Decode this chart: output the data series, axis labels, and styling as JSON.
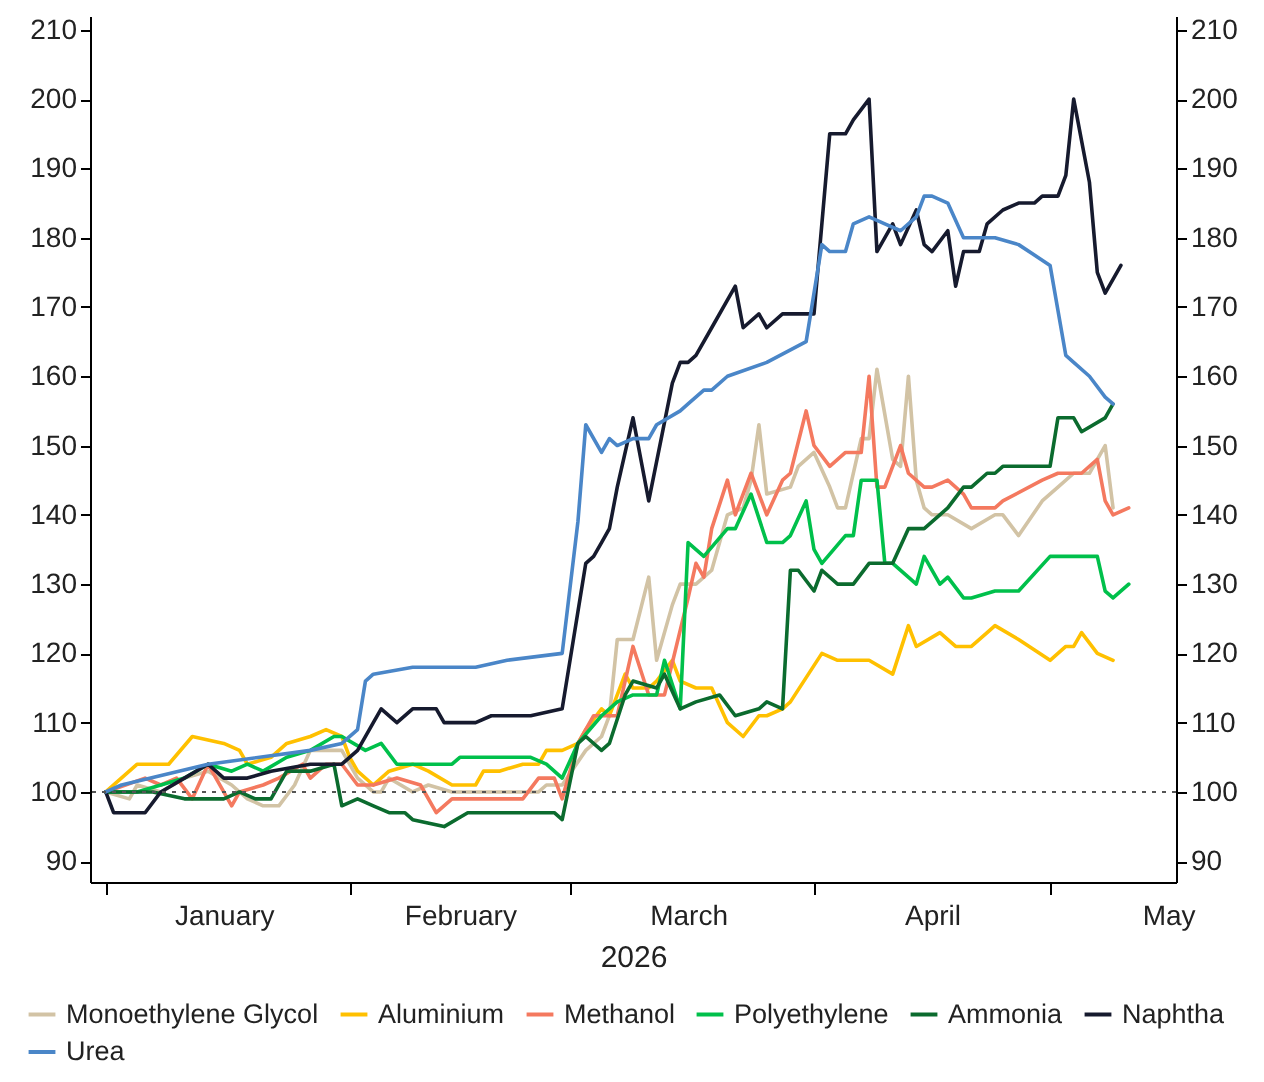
{
  "chart_data": {
    "type": "line",
    "xlabel": "2026",
    "legend": "bottom",
    "xlim": [
      "2025-12-30",
      "2026-05-17"
    ],
    "xticks": [
      {
        "value": "2026-01-01",
        "label": null
      },
      {
        "value": "2026-01-16",
        "label": "January"
      },
      {
        "value": "2026-02-01",
        "label": null
      },
      {
        "value": "2026-02-15",
        "label": "February"
      },
      {
        "value": "2026-03-01",
        "label": null
      },
      {
        "value": "2026-03-16",
        "label": "March"
      },
      {
        "value": "2026-04-01",
        "label": null
      },
      {
        "value": "2026-04-16",
        "label": "April"
      },
      {
        "value": "2026-05-01",
        "label": null
      },
      {
        "value": "2026-05-16",
        "label": "May"
      }
    ],
    "ylim": [
      87,
      212
    ],
    "yticks": [
      90,
      100,
      110,
      120,
      130,
      140,
      150,
      160,
      170,
      180,
      190,
      200,
      210
    ],
    "y2lim": [
      87,
      212
    ],
    "y2ticks": [
      90,
      100,
      110,
      120,
      130,
      140,
      150,
      160,
      170,
      180,
      190,
      200,
      210
    ],
    "ref_lines": [
      {
        "axis": "y",
        "value": 100,
        "color": "#555555",
        "line_style": "dotted"
      }
    ],
    "series": [
      {
        "name": "Monoethylene Glycol",
        "color": "#d2c3a5",
        "x": [
          "2026-01-01",
          "2026-01-04",
          "2026-01-05",
          "2026-01-08",
          "2026-01-11",
          "2026-01-14",
          "2026-01-17",
          "2026-01-19",
          "2026-01-21",
          "2026-01-23",
          "2026-01-25",
          "2026-01-27",
          "2026-01-29",
          "2026-01-31",
          "2026-02-02",
          "2026-02-04",
          "2026-02-05",
          "2026-02-06",
          "2026-02-09",
          "2026-02-11",
          "2026-02-14",
          "2026-02-25",
          "2026-02-26",
          "2026-02-28",
          "2026-03-03",
          "2026-03-05",
          "2026-03-06",
          "2026-03-07",
          "2026-03-09",
          "2026-03-11",
          "2026-03-12",
          "2026-03-14",
          "2026-03-15",
          "2026-03-17",
          "2026-03-19",
          "2026-03-21",
          "2026-03-23",
          "2026-03-24",
          "2026-03-25",
          "2026-03-26",
          "2026-03-29",
          "2026-03-30",
          "2026-04-01",
          "2026-04-03",
          "2026-04-04",
          "2026-04-05",
          "2026-04-07",
          "2026-04-08",
          "2026-04-09",
          "2026-04-11",
          "2026-04-12",
          "2026-04-13",
          "2026-04-14",
          "2026-04-15",
          "2026-04-16",
          "2026-04-18",
          "2026-04-21",
          "2026-04-24",
          "2026-04-25",
          "2026-04-27",
          "2026-04-30",
          "2026-05-02",
          "2026-05-04",
          "2026-05-06",
          "2026-05-08",
          "2026-05-09"
        ],
        "values": [
          100,
          99,
          101,
          100,
          102,
          103,
          101,
          99,
          98,
          98,
          101,
          106,
          106,
          106,
          102,
          100,
          100,
          102,
          100,
          101,
          100,
          100,
          101,
          101,
          106,
          108,
          111,
          122,
          122,
          131,
          119,
          127,
          130,
          130,
          132,
          140,
          141,
          145,
          153,
          143,
          144,
          147,
          149,
          144,
          141,
          141,
          151,
          151,
          161,
          148,
          147,
          160,
          145,
          141,
          140,
          140,
          138,
          140,
          140,
          137,
          142,
          144,
          146,
          146,
          150,
          141
        ]
      },
      {
        "name": "Aluminium",
        "color": "#ffc000",
        "x": [
          "2026-01-01",
          "2026-01-05",
          "2026-01-07",
          "2026-01-09",
          "2026-01-12",
          "2026-01-16",
          "2026-01-18",
          "2026-01-19",
          "2026-01-22",
          "2026-01-24",
          "2026-01-27",
          "2026-01-29",
          "2026-01-31",
          "2026-02-01",
          "2026-02-02",
          "2026-02-04",
          "2026-02-06",
          "2026-02-09",
          "2026-02-11",
          "2026-02-14",
          "2026-02-17",
          "2026-02-18",
          "2026-02-20",
          "2026-02-23",
          "2026-02-25",
          "2026-02-26",
          "2026-02-28",
          "2026-03-02",
          "2026-03-03",
          "2026-03-05",
          "2026-03-06",
          "2026-03-08",
          "2026-03-09",
          "2026-03-11",
          "2026-03-12",
          "2026-03-14",
          "2026-03-15",
          "2026-03-17",
          "2026-03-19",
          "2026-03-21",
          "2026-03-23",
          "2026-03-25",
          "2026-03-26",
          "2026-03-28",
          "2026-03-29",
          "2026-04-02",
          "2026-04-04",
          "2026-04-08",
          "2026-04-11",
          "2026-04-13",
          "2026-04-14",
          "2026-04-17",
          "2026-04-19",
          "2026-04-21",
          "2026-04-23",
          "2026-04-24",
          "2026-04-27",
          "2026-05-01",
          "2026-05-03",
          "2026-05-04",
          "2026-05-05",
          "2026-05-07",
          "2026-05-09"
        ],
        "values": [
          100,
          104,
          104,
          104,
          108,
          107,
          106,
          104,
          105,
          107,
          108,
          109,
          108,
          105,
          103,
          101,
          103,
          104,
          103,
          101,
          101,
          103,
          103,
          104,
          104,
          106,
          106,
          107,
          109,
          112,
          111,
          117,
          115,
          115,
          116,
          119,
          116,
          115,
          115,
          110,
          108,
          111,
          111,
          112,
          113,
          120,
          119,
          119,
          117,
          124,
          121,
          123,
          121,
          121,
          123,
          124,
          122,
          119,
          121,
          121,
          123,
          120,
          119
        ]
      },
      {
        "name": "Methanol",
        "color": "#f4795f",
        "x": [
          "2026-01-01",
          "2026-01-06",
          "2026-01-08",
          "2026-01-10",
          "2026-01-12",
          "2026-01-14",
          "2026-01-17",
          "2026-01-18",
          "2026-01-21",
          "2026-01-23",
          "2026-01-26",
          "2026-01-27",
          "2026-01-29",
          "2026-01-31",
          "2026-02-02",
          "2026-02-04",
          "2026-02-07",
          "2026-02-10",
          "2026-02-12",
          "2026-02-14",
          "2026-02-16",
          "2026-02-23",
          "2026-02-25",
          "2026-02-27",
          "2026-02-28",
          "2026-03-02",
          "2026-03-04",
          "2026-03-05",
          "2026-03-07",
          "2026-03-09",
          "2026-03-11",
          "2026-03-13",
          "2026-03-16",
          "2026-03-17",
          "2026-03-18",
          "2026-03-19",
          "2026-03-21",
          "2026-03-22",
          "2026-03-24",
          "2026-03-26",
          "2026-03-28",
          "2026-03-29",
          "2026-03-31",
          "2026-04-01",
          "2026-04-03",
          "2026-04-05",
          "2026-04-07",
          "2026-04-08",
          "2026-04-09",
          "2026-04-10",
          "2026-04-12",
          "2026-04-13",
          "2026-04-15",
          "2026-04-16",
          "2026-04-18",
          "2026-04-20",
          "2026-04-21",
          "2026-04-24",
          "2026-04-25",
          "2026-04-30",
          "2026-05-02",
          "2026-05-05",
          "2026-05-07",
          "2026-05-08",
          "2026-05-09",
          "2026-05-11"
        ],
        "values": [
          100,
          102,
          101,
          102,
          99,
          104,
          98,
          100,
          101,
          102,
          104,
          102,
          104,
          104,
          101,
          101,
          102,
          101,
          97,
          99,
          99,
          99,
          102,
          102,
          99,
          107,
          111,
          111,
          111,
          121,
          114,
          114,
          128,
          133,
          131,
          138,
          145,
          140,
          146,
          140,
          145,
          146,
          155,
          150,
          147,
          149,
          149,
          160,
          144,
          144,
          150,
          146,
          144,
          144,
          145,
          143,
          141,
          141,
          142,
          145,
          146,
          146,
          148,
          142,
          140,
          141
        ]
      },
      {
        "name": "Polyethylene",
        "color": "#00c04b",
        "x": [
          "2026-01-01",
          "2026-01-05",
          "2026-01-08",
          "2026-01-11",
          "2026-01-14",
          "2026-01-17",
          "2026-01-19",
          "2026-01-21",
          "2026-01-24",
          "2026-01-27",
          "2026-01-30",
          "2026-01-31",
          "2026-02-03",
          "2026-02-05",
          "2026-02-07",
          "2026-02-09",
          "2026-02-14",
          "2026-02-15",
          "2026-02-24",
          "2026-02-26",
          "2026-02-28",
          "2026-03-02",
          "2026-03-05",
          "2026-03-07",
          "2026-03-09",
          "2026-03-12",
          "2026-03-13",
          "2026-03-15",
          "2026-03-16",
          "2026-03-18",
          "2026-03-21",
          "2026-03-22",
          "2026-03-24",
          "2026-03-26",
          "2026-03-28",
          "2026-03-29",
          "2026-03-31",
          "2026-04-01",
          "2026-04-02",
          "2026-04-05",
          "2026-04-06",
          "2026-04-07",
          "2026-04-09",
          "2026-04-10",
          "2026-04-11",
          "2026-04-14",
          "2026-04-15",
          "2026-04-17",
          "2026-04-18",
          "2026-04-20",
          "2026-04-21",
          "2026-04-24",
          "2026-04-27",
          "2026-05-01",
          "2026-05-06",
          "2026-05-07",
          "2026-05-08",
          "2026-05-09",
          "2026-05-11"
        ],
        "values": [
          100,
          100,
          101,
          102,
          104,
          103,
          104,
          103,
          105,
          106,
          108,
          108,
          106,
          107,
          104,
          104,
          104,
          105,
          105,
          104,
          102,
          107,
          111,
          113,
          114,
          114,
          119,
          112,
          136,
          134,
          138,
          138,
          143,
          136,
          136,
          137,
          142,
          135,
          133,
          137,
          137,
          145,
          145,
          133,
          133,
          130,
          134,
          130,
          131,
          128,
          128,
          129,
          129,
          134,
          134,
          134,
          129,
          128,
          130
        ]
      },
      {
        "name": "Ammonia",
        "color": "#0b6b2e",
        "x": [
          "2026-01-01",
          "2026-01-07",
          "2026-01-11",
          "2026-01-14",
          "2026-01-16",
          "2026-01-18",
          "2026-01-20",
          "2026-01-22",
          "2026-01-24",
          "2026-01-27",
          "2026-01-30",
          "2026-01-31",
          "2026-02-02",
          "2026-02-04",
          "2026-02-06",
          "2026-02-08",
          "2026-02-09",
          "2026-02-13",
          "2026-02-16",
          "2026-02-24",
          "2026-02-27",
          "2026-02-28",
          "2026-03-02",
          "2026-03-03",
          "2026-03-05",
          "2026-03-06",
          "2026-03-08",
          "2026-03-09",
          "2026-03-12",
          "2026-03-13",
          "2026-03-15",
          "2026-03-17",
          "2026-03-20",
          "2026-03-22",
          "2026-03-25",
          "2026-03-26",
          "2026-03-28",
          "2026-03-29",
          "2026-03-30",
          "2026-04-01",
          "2026-04-02",
          "2026-04-04",
          "2026-04-06",
          "2026-04-08",
          "2026-04-11",
          "2026-04-13",
          "2026-04-15",
          "2026-04-18",
          "2026-04-20",
          "2026-04-21",
          "2026-04-23",
          "2026-04-24",
          "2026-04-25",
          "2026-04-28",
          "2026-05-01",
          "2026-05-02",
          "2026-05-04",
          "2026-05-05",
          "2026-05-08",
          "2026-05-09"
        ],
        "values": [
          100,
          100,
          99,
          99,
          99,
          100,
          99,
          99,
          103,
          103,
          104,
          98,
          99,
          98,
          97,
          97,
          96,
          95,
          97,
          97,
          97,
          96,
          107,
          108,
          106,
          107,
          114,
          116,
          115,
          117,
          112,
          113,
          114,
          111,
          112,
          113,
          112,
          132,
          132,
          129,
          132,
          130,
          130,
          133,
          133,
          138,
          138,
          141,
          144,
          144,
          146,
          146,
          147,
          147,
          147,
          154,
          154,
          152,
          154,
          156
        ]
      },
      {
        "name": "Naphtha",
        "color": "#161a2e",
        "x": [
          "2026-01-01",
          "2026-01-02",
          "2026-01-03",
          "2026-01-05",
          "2026-01-06",
          "2026-01-08",
          "2026-01-11",
          "2026-01-14",
          "2026-01-16",
          "2026-01-19",
          "2026-01-22",
          "2026-01-27",
          "2026-01-31",
          "2026-02-02",
          "2026-02-04",
          "2026-02-05",
          "2026-02-07",
          "2026-02-09",
          "2026-02-12",
          "2026-02-13",
          "2026-02-17",
          "2026-02-19",
          "2026-02-24",
          "2026-02-28",
          "2026-03-02",
          "2026-03-03",
          "2026-03-04",
          "2026-03-05",
          "2026-03-06",
          "2026-03-07",
          "2026-03-09",
          "2026-03-11",
          "2026-03-14",
          "2026-03-15",
          "2026-03-16",
          "2026-03-17",
          "2026-03-19",
          "2026-03-22",
          "2026-03-23",
          "2026-03-25",
          "2026-03-26",
          "2026-03-28",
          "2026-03-30",
          "2026-04-01",
          "2026-04-03",
          "2026-04-05",
          "2026-04-06",
          "2026-04-08",
          "2026-04-09",
          "2026-04-11",
          "2026-04-12",
          "2026-04-14",
          "2026-04-15",
          "2026-04-16",
          "2026-04-18",
          "2026-04-19",
          "2026-04-20",
          "2026-04-22",
          "2026-04-23",
          "2026-04-25",
          "2026-04-27",
          "2026-04-29",
          "2026-04-30",
          "2026-05-02",
          "2026-05-03",
          "2026-05-04",
          "2026-05-06",
          "2026-05-07",
          "2026-05-08",
          "2026-05-10"
        ],
        "values": [
          100,
          97,
          97,
          97,
          97,
          100,
          102,
          104,
          102,
          102,
          103,
          104,
          104,
          106,
          110,
          112,
          110,
          112,
          112,
          110,
          110,
          111,
          111,
          112,
          126,
          133,
          134,
          136,
          138,
          144,
          154,
          142,
          159,
          162,
          162,
          163,
          167,
          173,
          167,
          169,
          167,
          169,
          169,
          169,
          195,
          195,
          197,
          200,
          178,
          182,
          179,
          184,
          179,
          178,
          181,
          173,
          178,
          178,
          182,
          184,
          185,
          185,
          186,
          186,
          189,
          200,
          188,
          175,
          172,
          176
        ]
      },
      {
        "name": "Urea",
        "color": "#4a86c8",
        "x": [
          "2026-01-01",
          "2026-01-03",
          "2026-01-14",
          "2026-01-27",
          "2026-01-31",
          "2026-02-02",
          "2026-02-03",
          "2026-02-04",
          "2026-02-09",
          "2026-02-17",
          "2026-02-21",
          "2026-02-28",
          "2026-03-02",
          "2026-03-03",
          "2026-03-05",
          "2026-03-06",
          "2026-03-07",
          "2026-03-09",
          "2026-03-11",
          "2026-03-12",
          "2026-03-15",
          "2026-03-16",
          "2026-03-18",
          "2026-03-19",
          "2026-03-21",
          "2026-03-26",
          "2026-03-31",
          "2026-04-02",
          "2026-04-03",
          "2026-04-05",
          "2026-04-06",
          "2026-04-08",
          "2026-04-10",
          "2026-04-12",
          "2026-04-14",
          "2026-04-15",
          "2026-04-16",
          "2026-04-18",
          "2026-04-20",
          "2026-04-22",
          "2026-04-24",
          "2026-04-27",
          "2026-05-01",
          "2026-05-03",
          "2026-05-04",
          "2026-05-06",
          "2026-05-08",
          "2026-05-09"
        ],
        "values": [
          100,
          101,
          104,
          106,
          107,
          109,
          116,
          117,
          118,
          118,
          119,
          120,
          139,
          153,
          149,
          151,
          150,
          151,
          151,
          153,
          155,
          156,
          158,
          158,
          160,
          162,
          165,
          179,
          178,
          178,
          182,
          183,
          182,
          181,
          183,
          186,
          186,
          185,
          180,
          180,
          180,
          179,
          176,
          163,
          162,
          160,
          157,
          156
        ]
      }
    ]
  }
}
